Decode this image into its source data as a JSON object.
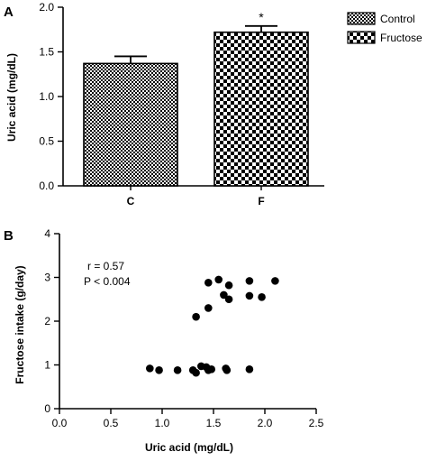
{
  "chart_data": [
    {
      "type": "bar",
      "panel": "A",
      "categories": [
        "C",
        "F"
      ],
      "values": [
        1.37,
        1.72
      ],
      "errors": [
        0.08,
        0.07
      ],
      "significance": [
        "",
        "*"
      ],
      "series": [
        {
          "name": "Control",
          "pattern": "fine-checker"
        },
        {
          "name": "Fructose",
          "pattern": "coarse-checker"
        }
      ],
      "ylabel": "Uric acid (mg/dL)",
      "xlabel": "",
      "ylim": [
        0.0,
        2.0
      ],
      "yticks": [
        "0.0",
        "0.5",
        "1.0",
        "1.5",
        "2.0"
      ],
      "legend_placement": "top-right"
    },
    {
      "type": "scatter",
      "panel": "B",
      "points": [
        {
          "x": 0.88,
          "y": 0.92
        },
        {
          "x": 0.97,
          "y": 0.88
        },
        {
          "x": 1.15,
          "y": 0.88
        },
        {
          "x": 1.3,
          "y": 0.88
        },
        {
          "x": 1.33,
          "y": 0.82
        },
        {
          "x": 1.38,
          "y": 0.97
        },
        {
          "x": 1.43,
          "y": 0.95
        },
        {
          "x": 1.45,
          "y": 0.88
        },
        {
          "x": 1.48,
          "y": 0.9
        },
        {
          "x": 1.62,
          "y": 0.92
        },
        {
          "x": 1.63,
          "y": 0.88
        },
        {
          "x": 1.85,
          "y": 0.9
        },
        {
          "x": 1.33,
          "y": 2.1
        },
        {
          "x": 1.45,
          "y": 2.3
        },
        {
          "x": 1.45,
          "y": 2.88
        },
        {
          "x": 1.55,
          "y": 2.95
        },
        {
          "x": 1.6,
          "y": 2.6
        },
        {
          "x": 1.65,
          "y": 2.5
        },
        {
          "x": 1.65,
          "y": 2.82
        },
        {
          "x": 1.85,
          "y": 2.92
        },
        {
          "x": 1.85,
          "y": 2.58
        },
        {
          "x": 1.97,
          "y": 2.55
        },
        {
          "x": 2.1,
          "y": 2.92
        }
      ],
      "annotations": [
        "r = 0.57",
        "P < 0.004"
      ],
      "xlabel": "Uric acid (mg/dL)",
      "ylabel": "Fructose intake (g/day)",
      "xlim": [
        0.0,
        2.5
      ],
      "ylim": [
        0,
        4
      ],
      "xticks": [
        "0.0",
        "0.5",
        "1.0",
        "1.5",
        "2.0",
        "2.5"
      ],
      "yticks": [
        "0",
        "1",
        "2",
        "3",
        "4"
      ]
    }
  ]
}
